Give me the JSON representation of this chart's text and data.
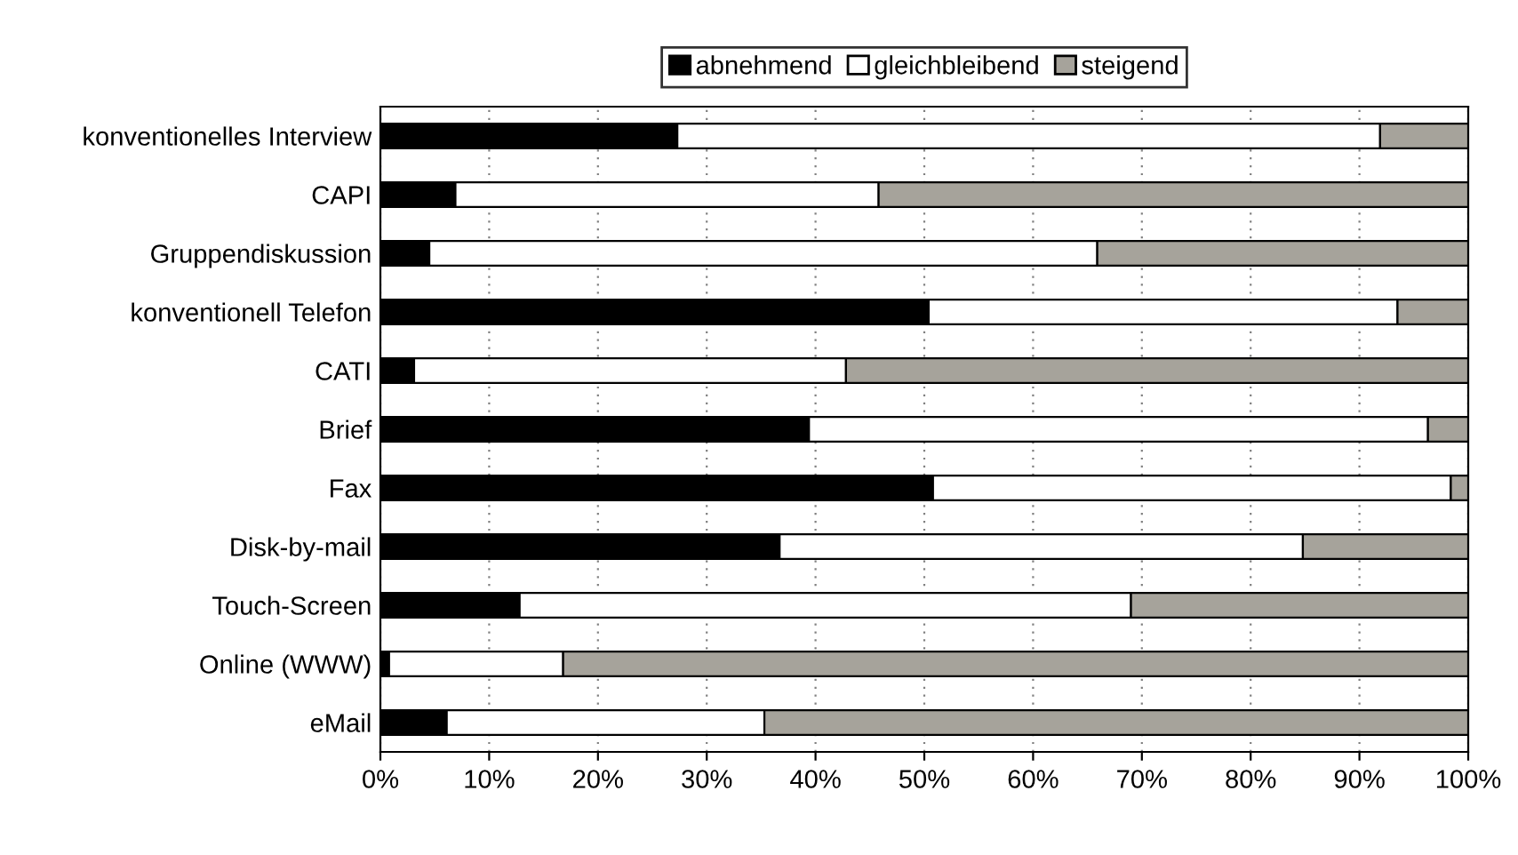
{
  "chart_data": {
    "type": "bar",
    "orientation": "horizontal",
    "stacked": true,
    "categories": [
      "konventionelles Interview",
      "CAPI",
      "Gruppendiskussion",
      "konventionell Telefon",
      "CATI",
      "Brief",
      "Fax",
      "Disk-by-mail",
      "Touch-Screen",
      "Online (WWW)",
      "eMail"
    ],
    "series": [
      {
        "name": "abnehmend",
        "color": "#000000",
        "values": [
          27.3,
          6.9,
          4.5,
          50.4,
          3.1,
          39.4,
          50.8,
          36.7,
          12.8,
          0.8,
          6.1
        ]
      },
      {
        "name": "gleichbleibend",
        "color": "#ffffff",
        "values": [
          64.6,
          38.9,
          61.4,
          43.1,
          39.7,
          56.9,
          47.6,
          48.1,
          56.2,
          16.0,
          29.2
        ]
      },
      {
        "name": "steigend",
        "color": "#a6a39b",
        "values": [
          8.1,
          54.2,
          34.1,
          6.5,
          57.2,
          3.7,
          1.6,
          15.2,
          31.0,
          83.2,
          64.7
        ]
      }
    ],
    "xlim": [
      0,
      100
    ],
    "xticks": [
      {
        "value": 0,
        "label": "0%"
      },
      {
        "value": 10,
        "label": "10%"
      },
      {
        "value": 20,
        "label": "20%"
      },
      {
        "value": 30,
        "label": "30%"
      },
      {
        "value": 40,
        "label": "40%"
      },
      {
        "value": 50,
        "label": "50%"
      },
      {
        "value": 60,
        "label": "60%"
      },
      {
        "value": 70,
        "label": "70%"
      },
      {
        "value": 80,
        "label": "80%"
      },
      {
        "value": 90,
        "label": "90%"
      },
      {
        "value": 100,
        "label": "100%"
      }
    ],
    "grid": "x",
    "legend": "top"
  }
}
